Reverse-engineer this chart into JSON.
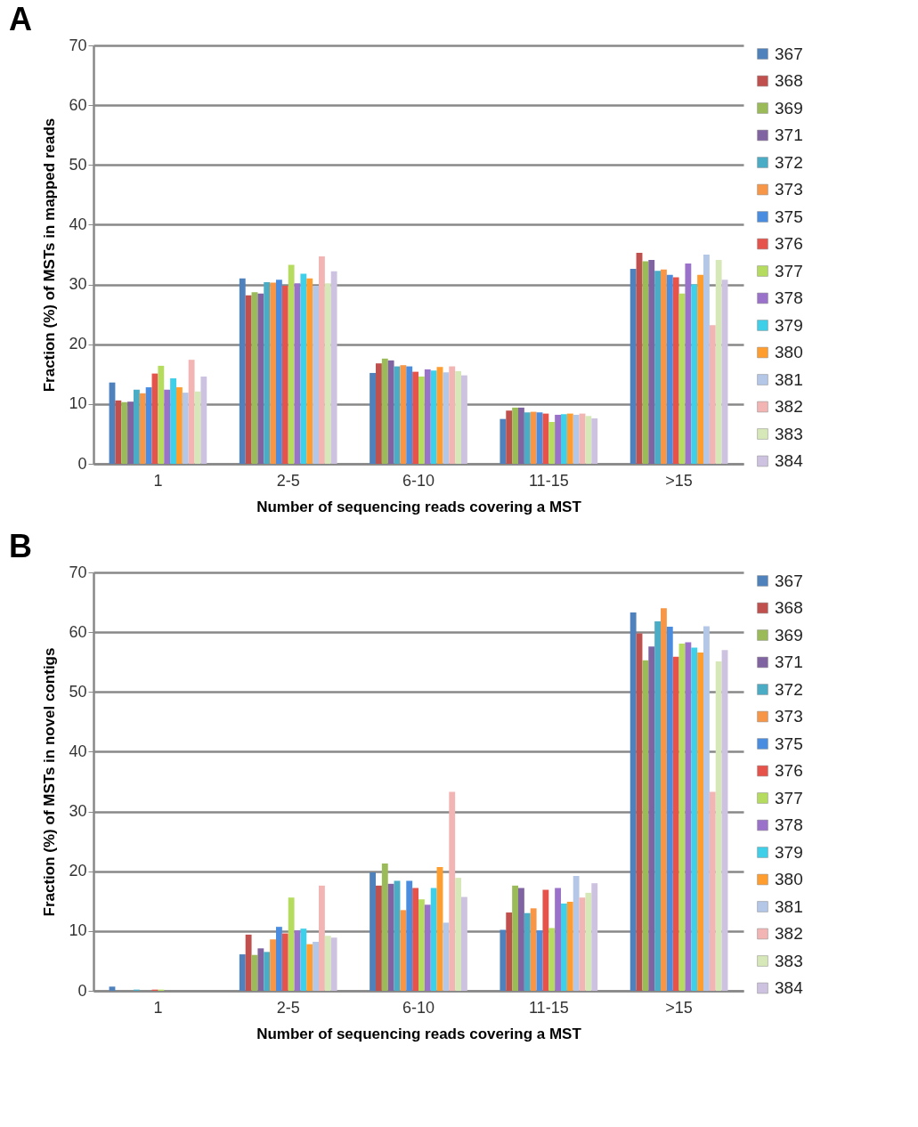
{
  "chart_data": [
    {
      "type": "bar",
      "title": "A",
      "xlabel": "Number of sequencing reads covering a MST",
      "ylabel": "Fraction (%) of MSTs in mapped reads",
      "categories": [
        "1",
        "2-5",
        "6-10",
        "11-15",
        ">15"
      ],
      "ylim": [
        0,
        70
      ],
      "yticks": [
        0,
        10,
        20,
        30,
        40,
        50,
        60,
        70
      ],
      "grid": "y",
      "legend": "right",
      "series": [
        {
          "name": "367",
          "color": "#4f81bd",
          "values": [
            13.6,
            31.0,
            15.2,
            7.5,
            32.6
          ]
        },
        {
          "name": "368",
          "color": "#c0504d",
          "values": [
            10.6,
            28.2,
            16.8,
            8.9,
            35.3
          ]
        },
        {
          "name": "369",
          "color": "#9bbb59",
          "values": [
            10.3,
            28.7,
            17.6,
            9.4,
            33.9
          ]
        },
        {
          "name": "371",
          "color": "#8064a2",
          "values": [
            10.4,
            28.5,
            17.3,
            9.4,
            34.1
          ]
        },
        {
          "name": "372",
          "color": "#4bacc6",
          "values": [
            12.4,
            30.4,
            16.3,
            8.6,
            32.3
          ]
        },
        {
          "name": "373",
          "color": "#f79646",
          "values": [
            11.8,
            30.3,
            16.5,
            8.7,
            32.5
          ]
        },
        {
          "name": "375",
          "color": "#4a8de0",
          "values": [
            12.8,
            30.8,
            16.3,
            8.6,
            31.6
          ]
        },
        {
          "name": "376",
          "color": "#e5534b",
          "values": [
            15.1,
            29.8,
            15.4,
            8.4,
            31.2
          ]
        },
        {
          "name": "377",
          "color": "#b5dc5e",
          "values": [
            16.4,
            33.3,
            14.6,
            7.0,
            28.5
          ]
        },
        {
          "name": "378",
          "color": "#9a72c9",
          "values": [
            12.4,
            30.2,
            15.8,
            8.2,
            33.5
          ]
        },
        {
          "name": "379",
          "color": "#3fcfe9",
          "values": [
            14.3,
            31.8,
            15.6,
            8.3,
            30.0
          ]
        },
        {
          "name": "380",
          "color": "#ff9d2e",
          "values": [
            12.8,
            31.0,
            16.2,
            8.4,
            31.6
          ]
        },
        {
          "name": "381",
          "color": "#b4c7e7",
          "values": [
            11.9,
            29.8,
            15.3,
            8.2,
            35.0
          ]
        },
        {
          "name": "382",
          "color": "#f2b5b3",
          "values": [
            17.4,
            34.7,
            16.3,
            8.4,
            23.2
          ]
        },
        {
          "name": "383",
          "color": "#d7e8b8",
          "values": [
            12.1,
            30.2,
            15.5,
            8.0,
            34.1
          ]
        },
        {
          "name": "384",
          "color": "#cdc3e0",
          "values": [
            14.6,
            32.2,
            14.8,
            7.6,
            30.8
          ]
        }
      ]
    },
    {
      "type": "bar",
      "title": "B",
      "xlabel": "Number of sequencing reads covering a MST",
      "ylabel": "Fraction (%) of MSTs in novel contigs",
      "categories": [
        "1",
        "2-5",
        "6-10",
        "11-15",
        ">15"
      ],
      "ylim": [
        0,
        70
      ],
      "yticks": [
        0,
        10,
        20,
        30,
        40,
        50,
        60,
        70
      ],
      "grid": "y",
      "legend": "right",
      "series": [
        {
          "name": "367",
          "color": "#4f81bd",
          "values": [
            0.7,
            6.1,
            19.8,
            10.2,
            63.3
          ]
        },
        {
          "name": "368",
          "color": "#c0504d",
          "values": [
            0,
            9.4,
            17.6,
            13.1,
            59.8
          ]
        },
        {
          "name": "369",
          "color": "#9bbb59",
          "values": [
            0,
            6.0,
            21.3,
            17.6,
            55.3
          ]
        },
        {
          "name": "371",
          "color": "#8064a2",
          "values": [
            0,
            7.1,
            17.9,
            17.2,
            57.6
          ]
        },
        {
          "name": "372",
          "color": "#4bacc6",
          "values": [
            0.2,
            6.5,
            18.4,
            13.0,
            61.8
          ]
        },
        {
          "name": "373",
          "color": "#f79646",
          "values": [
            0,
            8.6,
            13.5,
            13.8,
            64.0
          ]
        },
        {
          "name": "375",
          "color": "#4a8de0",
          "values": [
            0,
            10.7,
            18.4,
            10.1,
            60.9
          ]
        },
        {
          "name": "376",
          "color": "#e5534b",
          "values": [
            0.2,
            9.6,
            17.2,
            16.9,
            55.9
          ]
        },
        {
          "name": "377",
          "color": "#b5dc5e",
          "values": [
            0.2,
            15.6,
            15.3,
            10.5,
            58.1
          ]
        },
        {
          "name": "378",
          "color": "#9a72c9",
          "values": [
            0,
            10.1,
            14.4,
            17.2,
            58.3
          ]
        },
        {
          "name": "379",
          "color": "#3fcfe9",
          "values": [
            0,
            10.4,
            17.2,
            14.6,
            57.4
          ]
        },
        {
          "name": "380",
          "color": "#ff9d2e",
          "values": [
            0,
            7.8,
            20.7,
            14.9,
            56.6
          ]
        },
        {
          "name": "381",
          "color": "#b4c7e7",
          "values": [
            0,
            8.2,
            11.4,
            19.2,
            61.0
          ]
        },
        {
          "name": "382",
          "color": "#f2b5b3",
          "values": [
            0,
            17.6,
            33.3,
            15.6,
            33.3
          ]
        },
        {
          "name": "383",
          "color": "#d7e8b8",
          "values": [
            0,
            9.2,
            18.9,
            16.4,
            55.1
          ]
        },
        {
          "name": "384",
          "color": "#cdc3e0",
          "values": [
            0,
            8.9,
            15.7,
            18.0,
            57.0
          ]
        }
      ]
    }
  ]
}
